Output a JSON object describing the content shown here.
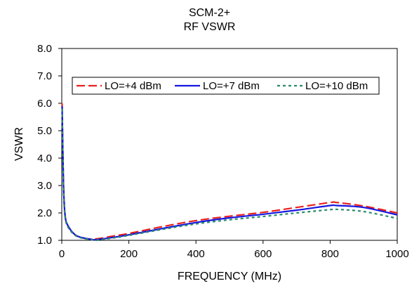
{
  "chart_data": {
    "type": "line",
    "title": "SCM-2+",
    "subtitle": "RF VSWR",
    "xlabel": "FREQUENCY (MHz)",
    "ylabel": "VSWR",
    "xlim": [
      0,
      1000
    ],
    "ylim": [
      1.0,
      8.0
    ],
    "x_ticks": [
      0,
      200,
      400,
      600,
      800,
      1000
    ],
    "y_ticks": [
      "1.0",
      "2.0",
      "3.0",
      "4.0",
      "5.0",
      "6.0",
      "7.0",
      "8.0"
    ],
    "grid": false,
    "legend_position": "top",
    "series": [
      {
        "name": "LO=+4 dBm",
        "color": "#e8211d",
        "dash": "long-dash",
        "x": [
          1,
          5,
          10,
          20,
          40,
          60,
          80,
          100,
          120,
          150,
          200,
          300,
          400,
          500,
          600,
          700,
          800,
          820,
          900,
          1000
        ],
        "y": [
          6.0,
          3.2,
          1.9,
          1.5,
          1.2,
          1.1,
          1.05,
          1.05,
          1.08,
          1.15,
          1.25,
          1.5,
          1.72,
          1.88,
          2.02,
          2.2,
          2.38,
          2.38,
          2.25,
          2.0
        ]
      },
      {
        "name": "LO=+7 dBm",
        "color": "#1616e0",
        "dash": "solid",
        "x": [
          1,
          5,
          10,
          20,
          40,
          60,
          80,
          100,
          120,
          150,
          200,
          300,
          400,
          500,
          600,
          700,
          800,
          820,
          900,
          1000
        ],
        "y": [
          5.9,
          3.1,
          1.9,
          1.5,
          1.2,
          1.1,
          1.05,
          1.02,
          1.05,
          1.1,
          1.2,
          1.43,
          1.65,
          1.82,
          1.95,
          2.1,
          2.27,
          2.27,
          2.2,
          1.93
        ]
      },
      {
        "name": "LO=+10 dBm",
        "color": "#2a8a6a",
        "dash": "short-dash",
        "x": [
          1,
          5,
          10,
          20,
          40,
          60,
          80,
          100,
          120,
          150,
          200,
          300,
          400,
          500,
          600,
          700,
          800,
          820,
          900,
          1000
        ],
        "y": [
          5.8,
          3.0,
          1.85,
          1.45,
          1.18,
          1.08,
          1.04,
          1.0,
          1.03,
          1.08,
          1.18,
          1.4,
          1.6,
          1.75,
          1.87,
          2.0,
          2.12,
          2.13,
          2.05,
          1.8
        ]
      }
    ]
  }
}
